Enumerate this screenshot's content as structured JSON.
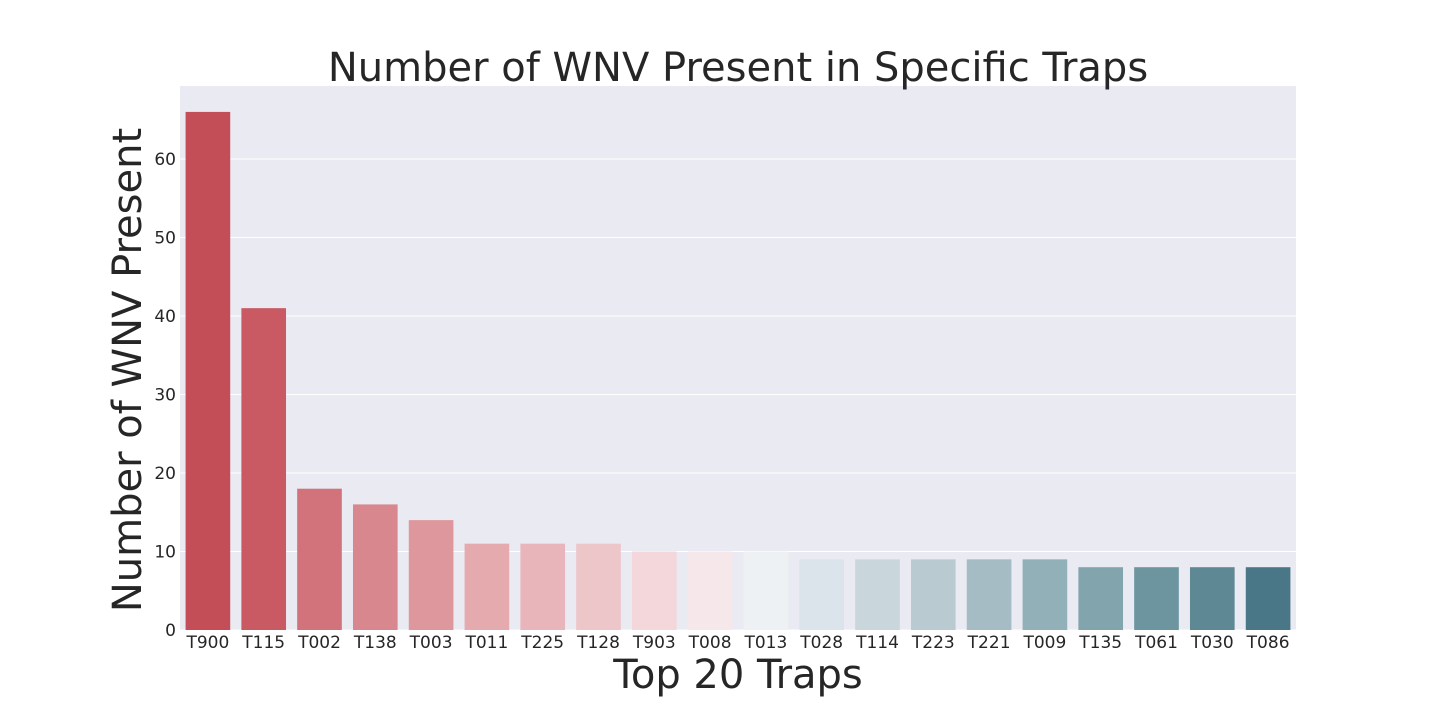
{
  "chart_data": {
    "type": "bar",
    "title": "Number of WNV Present in Specific Traps",
    "xlabel": "Top 20 Traps",
    "ylabel": "Number of WNV Present",
    "categories": [
      "T900",
      "T115",
      "T002",
      "T138",
      "T003",
      "T011",
      "T225",
      "T128",
      "T903",
      "T008",
      "T013",
      "T028",
      "T114",
      "T223",
      "T221",
      "T009",
      "T135",
      "T061",
      "T030",
      "T086"
    ],
    "values": [
      66,
      41,
      18,
      16,
      14,
      11,
      11,
      11,
      10,
      10,
      10,
      9,
      9,
      9,
      9,
      9,
      8,
      8,
      8,
      8
    ],
    "ylim": [
      0,
      69.3
    ],
    "yticks": [
      0,
      10,
      20,
      30,
      40,
      50,
      60
    ],
    "grid": true,
    "colors": [
      "#c44e58",
      "#c95a63",
      "#d2727a",
      "#d9878e",
      "#de989d",
      "#e4aaae",
      "#e8b6ba",
      "#edc6ca",
      "#f3d7da",
      "#f6e7ea",
      "#edf1f4",
      "#dae4ea",
      "#c9d7dd",
      "#b9cbd1",
      "#a5bcc4",
      "#92b0b8",
      "#82a4ad",
      "#6c95a0",
      "#5e8894",
      "#4a7787"
    ],
    "background": "#eaeaf2",
    "grid_color": "#ffffff"
  }
}
